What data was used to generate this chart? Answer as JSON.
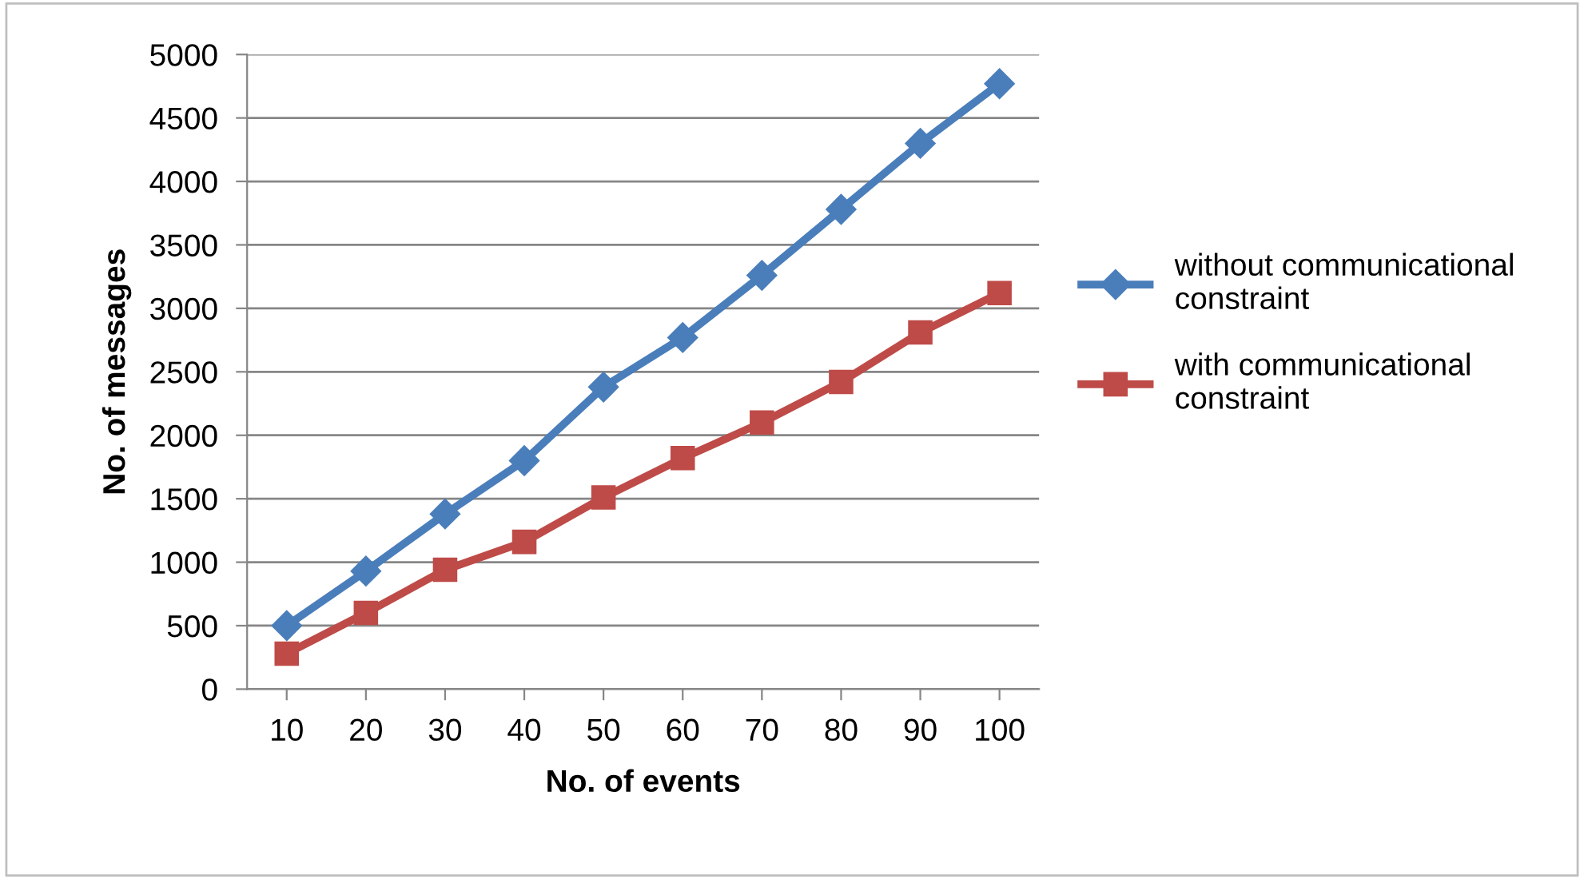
{
  "chart_data": {
    "type": "line",
    "xlabel": "No. of events",
    "ylabel": "No. of messages",
    "categories": [
      "10",
      "20",
      "30",
      "40",
      "50",
      "60",
      "70",
      "80",
      "90",
      "100"
    ],
    "series": [
      {
        "name": "without communicational constraint",
        "color": "#4a7ebb",
        "marker": "diamond",
        "values": [
          500,
          930,
          1380,
          1800,
          2380,
          2770,
          3260,
          3780,
          4300,
          4770
        ]
      },
      {
        "name": "with communicational constraint",
        "color": "#be4b48",
        "marker": "square",
        "values": [
          280,
          600,
          940,
          1160,
          1510,
          1820,
          2100,
          2420,
          2810,
          3120
        ]
      }
    ],
    "ylim": [
      0,
      5000
    ],
    "yticks": [
      0,
      500,
      1000,
      1500,
      2000,
      2500,
      3000,
      3500,
      4000,
      4500,
      5000
    ],
    "grid": "y",
    "legend": "right",
    "line_style": "solid"
  }
}
